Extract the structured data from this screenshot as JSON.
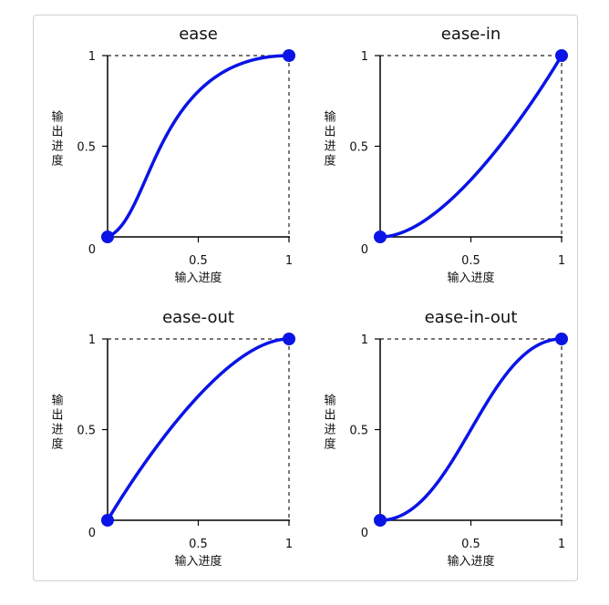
{
  "chart_data": [
    {
      "type": "line",
      "title": "ease",
      "bezier": [
        0.25,
        0.1,
        0.25,
        1.0
      ],
      "xlabel": "输入进度",
      "ylabel": "输出进度",
      "xlim": [
        0,
        1
      ],
      "ylim": [
        0,
        1
      ],
      "x_ticks": [
        "0.5",
        "1"
      ],
      "y_ticks": [
        "0",
        "0.5",
        "1"
      ],
      "endpoints": [
        [
          0,
          0
        ],
        [
          1,
          1
        ]
      ]
    },
    {
      "type": "line",
      "title": "ease-in",
      "bezier": [
        0.42,
        0.0,
        1.0,
        1.0
      ],
      "xlabel": "输入进度",
      "ylabel": "输出进度",
      "xlim": [
        0,
        1
      ],
      "ylim": [
        0,
        1
      ],
      "x_ticks": [
        "0.5",
        "1"
      ],
      "y_ticks": [
        "0",
        "0.5",
        "1"
      ],
      "endpoints": [
        [
          0,
          0
        ],
        [
          1,
          1
        ]
      ]
    },
    {
      "type": "line",
      "title": "ease-out",
      "bezier": [
        0.0,
        0.0,
        0.58,
        1.0
      ],
      "xlabel": "输入进度",
      "ylabel": "输出进度",
      "xlim": [
        0,
        1
      ],
      "ylim": [
        0,
        1
      ],
      "x_ticks": [
        "0.5",
        "1"
      ],
      "y_ticks": [
        "0",
        "0.5",
        "1"
      ],
      "endpoints": [
        [
          0,
          0
        ],
        [
          1,
          1
        ]
      ]
    },
    {
      "type": "line",
      "title": "ease-in-out",
      "bezier": [
        0.42,
        0.0,
        0.58,
        1.0
      ],
      "xlabel": "输入进度",
      "ylabel": "输出进度",
      "xlim": [
        0,
        1
      ],
      "ylim": [
        0,
        1
      ],
      "x_ticks": [
        "0.5",
        "1"
      ],
      "y_ticks": [
        "0",
        "0.5",
        "1"
      ],
      "endpoints": [
        [
          0,
          0
        ],
        [
          1,
          1
        ]
      ]
    }
  ],
  "colors": {
    "curve": "#0a14e6",
    "axis": "#000000",
    "guide": "#222222"
  }
}
